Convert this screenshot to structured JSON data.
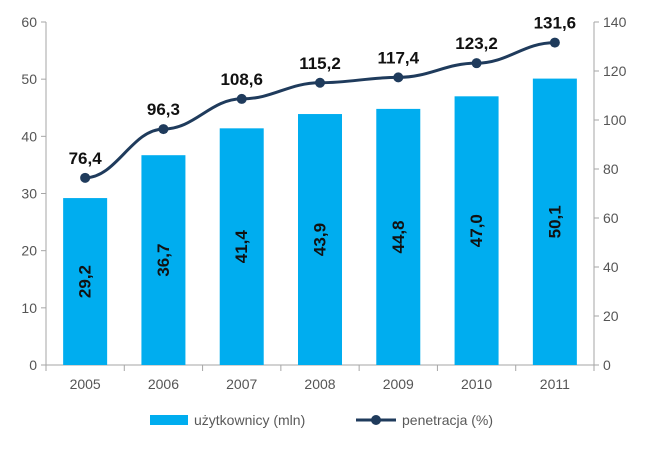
{
  "chart_data": {
    "type": "bar+line",
    "categories": [
      "2005",
      "2006",
      "2007",
      "2008",
      "2009",
      "2010",
      "2011"
    ],
    "series": [
      {
        "name": "użytkownicy (mln)",
        "type": "bar",
        "axis": "left",
        "color": "#00adef",
        "values": [
          29.2,
          36.7,
          41.4,
          43.9,
          44.8,
          47.0,
          50.1
        ],
        "labels": [
          "29,2",
          "36,7",
          "41,4",
          "43,9",
          "44,8",
          "47,0",
          "50,1"
        ]
      },
      {
        "name": "penetracja (%)",
        "type": "line",
        "axis": "right",
        "color": "#1f3b5c",
        "values": [
          76.4,
          96.3,
          108.6,
          115.2,
          117.4,
          123.2,
          131.6
        ],
        "labels": [
          "76,4",
          "96,3",
          "108,6",
          "115,2",
          "117,4",
          "123,2",
          "131,6"
        ]
      }
    ],
    "y_left": {
      "ylim": [
        0,
        60
      ],
      "ticks": [
        "0",
        "10",
        "20",
        "30",
        "40",
        "50",
        "60"
      ]
    },
    "y_right": {
      "ylim": [
        0,
        140
      ],
      "ticks": [
        "0",
        "20",
        "40",
        "60",
        "80",
        "100",
        "120",
        "140"
      ]
    },
    "grid": false,
    "legend": "bottom"
  }
}
